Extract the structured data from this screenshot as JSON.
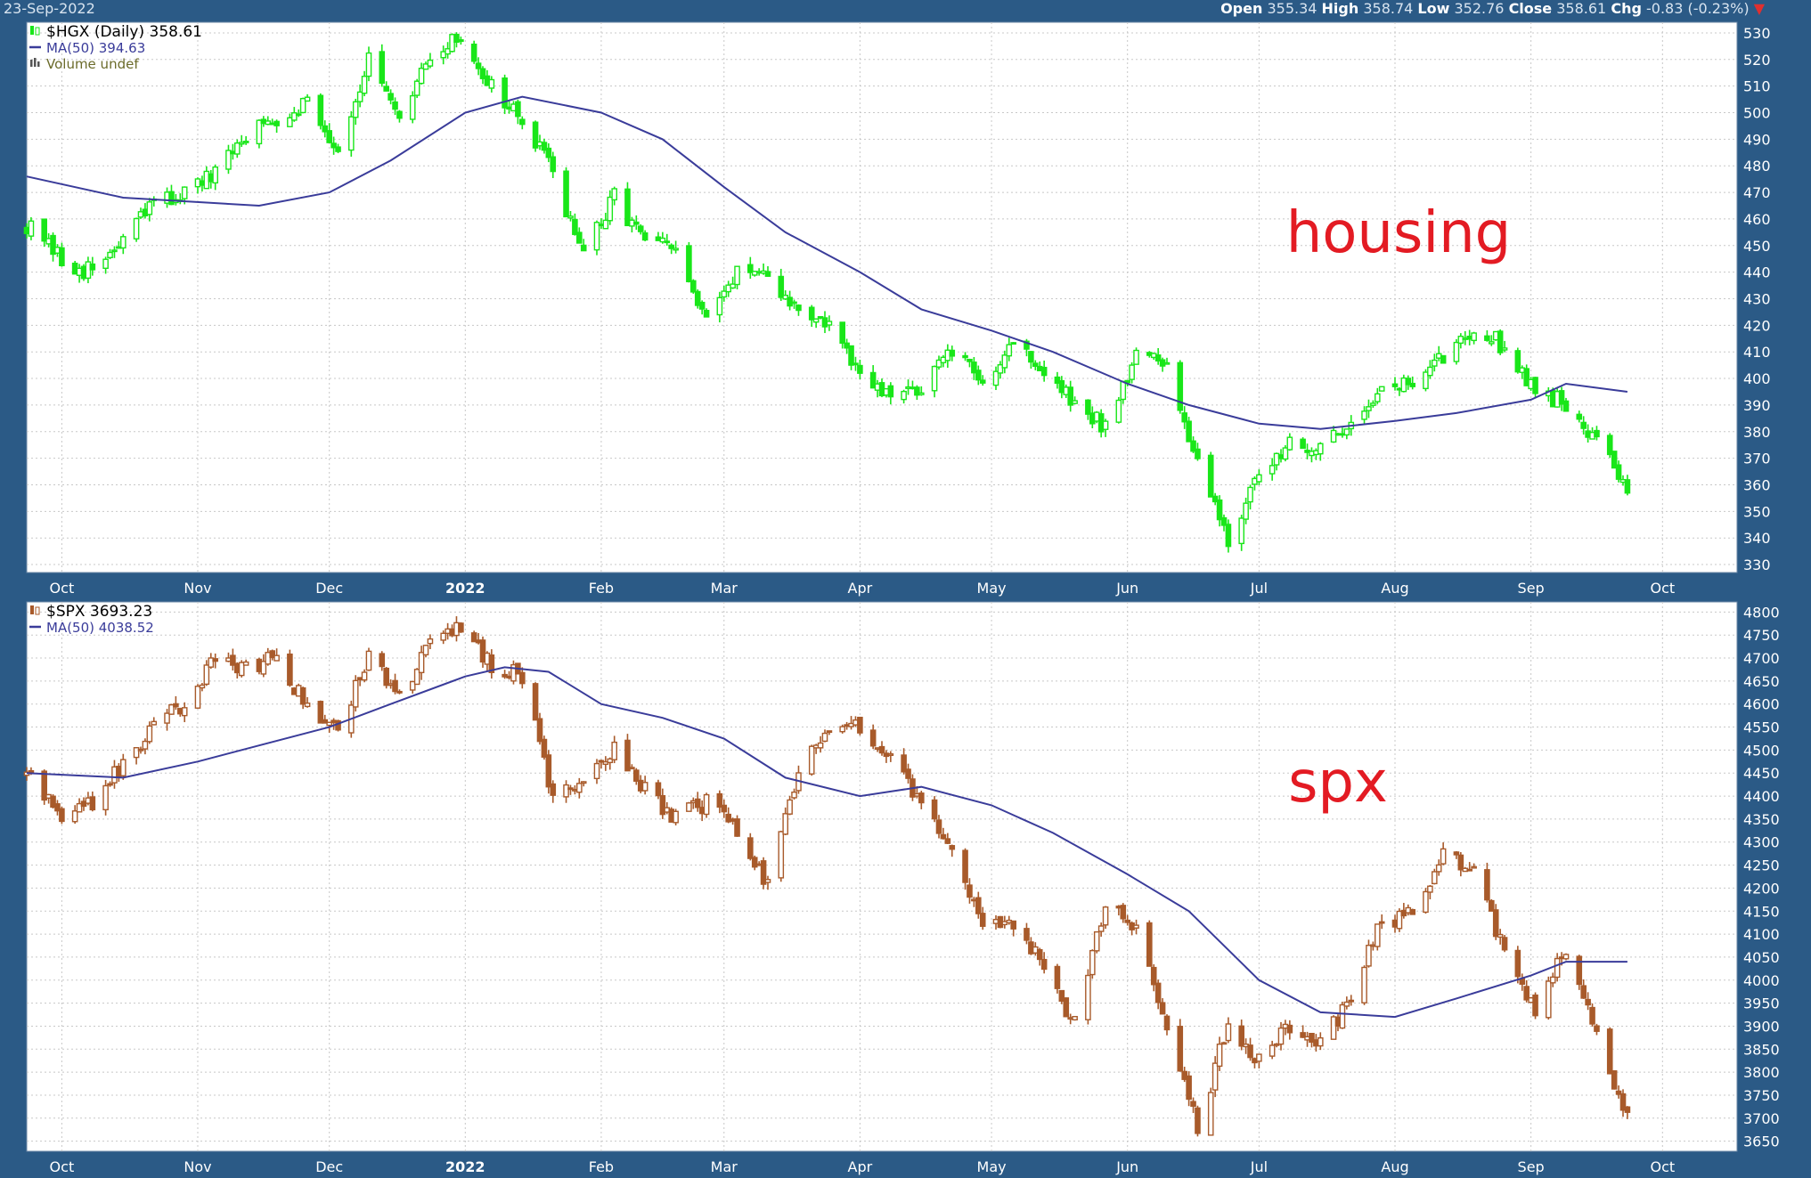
{
  "header": {
    "date": "23-Sep-2022",
    "open_label": "Open",
    "open_value": "355.34",
    "high_label": "High",
    "high_value": "358.74",
    "low_label": "Low",
    "low_value": "352.76",
    "close_label": "Close",
    "close_value": "358.61",
    "chg_label": "Chg",
    "chg_value": "-0.83 (-0.23%)",
    "chg_direction_icon": "down-triangle-icon"
  },
  "colors": {
    "frame": "#2b5a86",
    "plot_bg": "#ffffff",
    "grid": "#c8c8c8",
    "ma_line": "#3a3c9a",
    "hgx_candles": "#19e619",
    "spx_candles": "#a85a2a",
    "annotation": "#e31b23"
  },
  "chart_data": [
    {
      "type": "candlestick",
      "title": "$HGX (Daily) 358.61",
      "legend": [
        {
          "label": "$HGX (Daily) 358.61",
          "icon": "candle-icon",
          "color": "#19e619"
        },
        {
          "label": "MA(50) 394.63",
          "icon": "line-icon",
          "color": "#3a3c9a"
        },
        {
          "label": "Volume undef",
          "icon": "volume-bars-icon",
          "color": "#555555"
        }
      ],
      "annotation": "housing",
      "legend_position": "top-left",
      "grid": true,
      "x_ticks": [
        "Oct",
        "Nov",
        "Dec",
        "2022",
        "Feb",
        "Mar",
        "Apr",
        "May",
        "Jun",
        "Jul",
        "Aug",
        "Sep",
        "Oct"
      ],
      "y_ticks": [
        330,
        340,
        350,
        360,
        370,
        380,
        390,
        400,
        410,
        420,
        430,
        440,
        450,
        460,
        470,
        480,
        490,
        500,
        510,
        520,
        530
      ],
      "ylim": [
        327,
        534
      ],
      "xlim": [
        "2021-09-23",
        "2022-10-18"
      ],
      "close_series": {
        "name": "$HGX",
        "x": [
          "2021-09-23",
          "2021-10-01",
          "2021-10-08",
          "2021-10-15",
          "2021-10-22",
          "2021-10-29",
          "2021-11-05",
          "2021-11-12",
          "2021-11-19",
          "2021-11-26",
          "2021-12-03",
          "2021-12-10",
          "2021-12-17",
          "2021-12-24",
          "2021-12-31",
          "2022-01-07",
          "2022-01-14",
          "2022-01-21",
          "2022-01-28",
          "2022-02-04",
          "2022-02-11",
          "2022-02-18",
          "2022-02-25",
          "2022-03-04",
          "2022-03-11",
          "2022-03-18",
          "2022-03-25",
          "2022-04-01",
          "2022-04-08",
          "2022-04-14",
          "2022-04-22",
          "2022-04-29",
          "2022-05-06",
          "2022-05-13",
          "2022-05-20",
          "2022-05-27",
          "2022-06-03",
          "2022-06-10",
          "2022-06-17",
          "2022-06-24",
          "2022-07-01",
          "2022-07-08",
          "2022-07-15",
          "2022-07-22",
          "2022-07-29",
          "2022-08-05",
          "2022-08-12",
          "2022-08-19",
          "2022-08-26",
          "2022-09-02",
          "2022-09-09",
          "2022-09-16",
          "2022-09-23"
        ],
        "values": [
          458,
          444,
          440,
          452,
          466,
          470,
          476,
          492,
          498,
          505,
          486,
          520,
          495,
          522,
          528,
          510,
          496,
          478,
          446,
          468,
          452,
          448,
          420,
          442,
          436,
          426,
          420,
          400,
          392,
          396,
          410,
          398,
          415,
          402,
          390,
          382,
          410,
          404,
          370,
          340,
          362,
          378,
          372,
          385,
          396,
          398,
          408,
          420,
          412,
          396,
          390,
          378,
          359
        ]
      },
      "ma50_series": {
        "name": "MA(50) 394.63",
        "x": [
          "2021-09-23",
          "2021-10-15",
          "2021-11-15",
          "2021-12-01",
          "2021-12-15",
          "2022-01-01",
          "2022-01-14",
          "2022-02-01",
          "2022-02-15",
          "2022-03-01",
          "2022-03-15",
          "2022-04-01",
          "2022-04-15",
          "2022-05-01",
          "2022-05-15",
          "2022-06-01",
          "2022-06-15",
          "2022-07-01",
          "2022-07-15",
          "2022-08-01",
          "2022-08-15",
          "2022-09-01",
          "2022-09-09",
          "2022-09-23"
        ],
        "values": [
          476,
          468,
          465,
          470,
          482,
          500,
          506,
          500,
          490,
          472,
          455,
          440,
          426,
          418,
          410,
          398,
          390,
          383,
          381,
          384,
          387,
          392,
          398,
          395
        ]
      }
    },
    {
      "type": "candlestick",
      "title": "$SPX 3693.23",
      "legend": [
        {
          "label": "$SPX 3693.23",
          "icon": "candle-icon",
          "color": "#a85a2a"
        },
        {
          "label": "MA(50) 4038.52",
          "icon": "line-icon",
          "color": "#3a3c9a"
        }
      ],
      "annotation": "spx",
      "legend_position": "top-left",
      "grid": true,
      "x_ticks": [
        "Oct",
        "Nov",
        "Dec",
        "2022",
        "Feb",
        "Mar",
        "Apr",
        "May",
        "Jun",
        "Jul",
        "Aug",
        "Sep",
        "Oct"
      ],
      "y_ticks": [
        3650,
        3700,
        3750,
        3800,
        3850,
        3900,
        3950,
        4000,
        4050,
        4100,
        4150,
        4200,
        4250,
        4300,
        4350,
        4400,
        4450,
        4500,
        4550,
        4600,
        4650,
        4700,
        4750,
        4800
      ],
      "ylim": [
        3628,
        4822
      ],
      "xlim": [
        "2021-09-23",
        "2022-10-18"
      ],
      "close_series": {
        "name": "$SPX",
        "x": [
          "2021-09-23",
          "2021-10-01",
          "2021-10-08",
          "2021-10-15",
          "2021-10-22",
          "2021-10-29",
          "2021-11-05",
          "2021-11-12",
          "2021-11-19",
          "2021-11-26",
          "2021-12-03",
          "2021-12-10",
          "2021-12-17",
          "2021-12-24",
          "2021-12-31",
          "2022-01-07",
          "2022-01-14",
          "2022-01-21",
          "2022-01-28",
          "2022-02-04",
          "2022-02-11",
          "2022-02-18",
          "2022-02-25",
          "2022-03-04",
          "2022-03-11",
          "2022-03-18",
          "2022-03-25",
          "2022-04-01",
          "2022-04-08",
          "2022-04-14",
          "2022-04-22",
          "2022-04-29",
          "2022-05-06",
          "2022-05-13",
          "2022-05-20",
          "2022-05-27",
          "2022-06-03",
          "2022-06-10",
          "2022-06-17",
          "2022-06-24",
          "2022-07-01",
          "2022-07-08",
          "2022-07-15",
          "2022-07-22",
          "2022-07-29",
          "2022-08-05",
          "2022-08-12",
          "2022-08-19",
          "2022-08-26",
          "2022-09-02",
          "2022-09-09",
          "2022-09-16",
          "2022-09-23"
        ],
        "values": [
          4450,
          4360,
          4390,
          4470,
          4545,
          4605,
          4697,
          4682,
          4698,
          4594,
          4538,
          4712,
          4620,
          4725,
          4766,
          4677,
          4662,
          4398,
          4431,
          4500,
          4418,
          4349,
          4385,
          4328,
          4204,
          4463,
          4543,
          4545,
          4488,
          4392,
          4271,
          4132,
          4123,
          4023,
          3901,
          4158,
          4108,
          3900,
          3675,
          3911,
          3825,
          3899,
          3863,
          3961,
          4130,
          4145,
          4280,
          4228,
          4057,
          3924,
          4067,
          3873,
          3693
        ]
      },
      "ma50_series": {
        "name": "MA(50) 4038.52",
        "x": [
          "2021-09-23",
          "2021-10-15",
          "2021-11-01",
          "2021-11-15",
          "2021-12-01",
          "2021-12-15",
          "2022-01-01",
          "2022-01-10",
          "2022-01-20",
          "2022-02-01",
          "2022-02-15",
          "2022-03-01",
          "2022-03-15",
          "2022-04-01",
          "2022-04-15",
          "2022-05-01",
          "2022-05-15",
          "2022-06-01",
          "2022-06-15",
          "2022-07-01",
          "2022-07-15",
          "2022-08-01",
          "2022-08-15",
          "2022-09-01",
          "2022-09-09",
          "2022-09-23"
        ],
        "values": [
          4450,
          4440,
          4475,
          4510,
          4550,
          4600,
          4660,
          4680,
          4670,
          4600,
          4570,
          4525,
          4440,
          4400,
          4420,
          4380,
          4320,
          4230,
          4150,
          4000,
          3930,
          3920,
          3960,
          4010,
          4040,
          4040
        ]
      }
    }
  ]
}
